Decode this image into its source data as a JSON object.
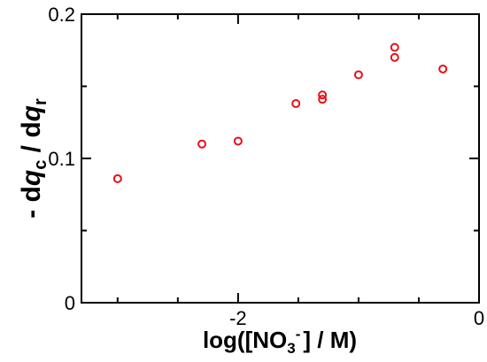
{
  "chart_data": {
    "type": "scatter",
    "xlim": [
      -3.3,
      0
    ],
    "ylim": [
      0,
      0.2
    ],
    "x_ticks": [
      -2,
      0
    ],
    "x_tick_labels": [
      "-2",
      "0"
    ],
    "y_ticks": [
      0,
      0.1,
      0.2
    ],
    "y_tick_labels": [
      "0",
      "0.1",
      "0.2"
    ],
    "xlabel": {
      "prefix": "log([NO",
      "sub": "3",
      "sup": "-",
      "suffix": "] / M)"
    },
    "ylabel": {
      "part1": "- d",
      "q1": "q",
      "sub1": "c",
      "part2": " / d",
      "q2": "q",
      "sub2": "r"
    },
    "grid": false,
    "marker_color": "#e8121a",
    "series": [
      {
        "points": [
          {
            "x": -3.0,
            "y": 0.086
          },
          {
            "x": -2.3,
            "y": 0.11
          },
          {
            "x": -2.0,
            "y": 0.112
          },
          {
            "x": -1.52,
            "y": 0.138
          },
          {
            "x": -1.3,
            "y": 0.141
          },
          {
            "x": -1.3,
            "y": 0.144
          },
          {
            "x": -1.0,
            "y": 0.158
          },
          {
            "x": -0.7,
            "y": 0.17
          },
          {
            "x": -0.7,
            "y": 0.177
          },
          {
            "x": -0.3,
            "y": 0.162
          }
        ]
      }
    ]
  }
}
